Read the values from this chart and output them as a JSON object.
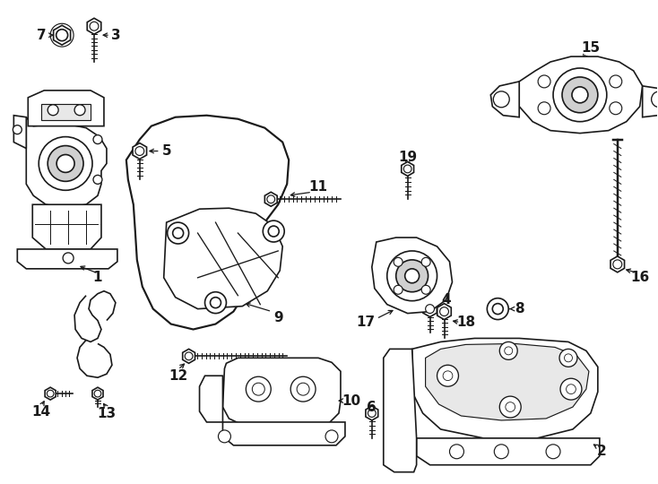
{
  "background_color": "#ffffff",
  "line_color": "#1a1a1a",
  "figure_width": 7.34,
  "figure_height": 5.4,
  "dpi": 100
}
